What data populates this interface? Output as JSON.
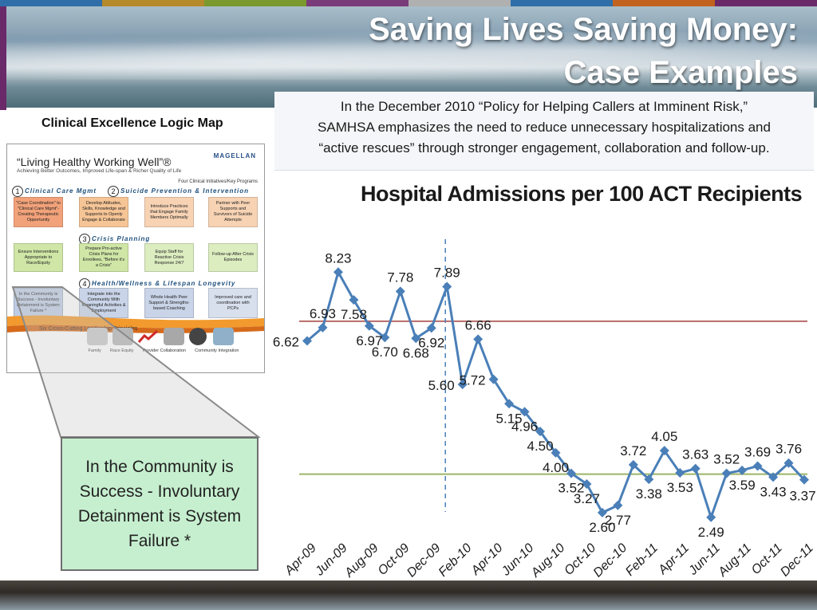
{
  "header": {
    "title_line1": "Saving Lives Saving Money:",
    "title_line2": "Case Examples",
    "colors": [
      "#2f6ea8",
      "#b58a2a",
      "#7a9a2f",
      "#7a3b7a",
      "#b0b0b0",
      "#2f6ea8",
      "#c1631f",
      "#6a2a6a"
    ]
  },
  "policy": {
    "line1": "In the December 2010 “Policy for Helping Callers at Imminent Risk,”",
    "line2": "SAMHSA emphasizes the need to reduce unnecessary hospitalizations and",
    "line3": "“active rescues” through stronger engagement, collaboration and follow-up."
  },
  "logic_map": {
    "title": "Clinical Excellence Logic Map",
    "heading": "“Living Healthy Working Well”®",
    "subheading": "Achieving Better Outcomes, Improved Life-span & Richer Quality of Life",
    "logo": "MAGELLAN",
    "four_label": "Four Clinical Initiatives/Key Programs",
    "sections": [
      {
        "num": "1",
        "label": "Clinical Care Mgmt"
      },
      {
        "num": "2",
        "label": "Suicide Prevention & Intervention"
      },
      {
        "num": "3",
        "label": "Crisis Planning"
      },
      {
        "num": "4",
        "label": "Health/Wellness & Lifespan Longevity"
      }
    ],
    "boxes": [
      "\"Case Coordination\" to \"Clinical Care Mgmt\"- Creating Therapeutic Opportunity",
      "Develop Attitudes, Skills, Knowledge and Supports to Openly Engage & Collaborate",
      "Introduce Practices that Engage Family Members Optimally",
      "Partner with Peer Supports and Survivors of Suicide Attempts",
      "Ensure Interventions Appropriate to Race/Equity",
      "Prepare Pro-active Crisis Plans for Enrollees, \"Before it's a Crisis\"",
      "Equip Staff for Reactive Crisis Response 24/7",
      "Follow-up After Crisis Episodes",
      "In the Community is Success - Involuntary Detainment is System Failure *",
      "Integrate into the Community With Meaningful Activities & Employment",
      "Whole Health Peer Support & Strengths-based Coaching",
      "Improved care and coordination with PCPs"
    ],
    "six_label": "Six Cross-Cutting Leadership Principles",
    "principles": [
      "Family",
      "Race Equity",
      "Provider Collaboration",
      "Community Integration"
    ]
  },
  "callout": {
    "line1": "In the Community is",
    "line2": "Success - Involuntary",
    "line3": "Detainment is System",
    "line4": "Failure *"
  },
  "chart_data": {
    "type": "line",
    "title": "Hospital Admissions per 100 ACT Recipients",
    "x": [
      "Apr-09",
      "May-09",
      "Jun-09",
      "Jul-09",
      "Aug-09",
      "Sep-09",
      "Oct-09",
      "Nov-09",
      "Dec-09",
      "Jan-10",
      "Feb-10",
      "Mar-10",
      "Apr-10",
      "May-10",
      "Jun-10",
      "Jul-10",
      "Aug-10",
      "Sep-10",
      "Oct-10",
      "Nov-10",
      "Dec-10",
      "Jan-11",
      "Feb-11",
      "Mar-11",
      "Apr-11",
      "May-11",
      "Jun-11",
      "Jul-11",
      "Aug-11",
      "Sep-11",
      "Oct-11",
      "Nov-11",
      "Dec-11"
    ],
    "y": [
      6.62,
      6.93,
      8.23,
      7.58,
      6.97,
      6.7,
      7.78,
      6.68,
      6.92,
      7.89,
      5.6,
      6.66,
      5.72,
      5.15,
      4.96,
      4.5,
      4.0,
      3.52,
      3.27,
      2.6,
      2.77,
      3.72,
      3.38,
      4.05,
      3.53,
      3.63,
      2.49,
      3.52,
      3.59,
      3.69,
      3.43,
      3.76,
      3.37
    ],
    "labels": [
      "6.62",
      "6.93",
      "8.23",
      "7.58",
      "6.97",
      "6.70",
      "7.78",
      "6.68",
      "6.92",
      "7.89",
      "5.60",
      "6.66",
      "5.72",
      "5.15",
      "4.96",
      "4.50",
      "4.00",
      "3.52",
      "3.27",
      "2.60",
      "2.77",
      "3.72",
      "3.38",
      "4.05",
      "3.53",
      "3.63",
      "2.49",
      "3.52",
      "3.59",
      "3.69",
      "3.43",
      "3.76",
      "3.37"
    ],
    "tick_labels": [
      "Apr-09",
      "Jun-09",
      "Aug-09",
      "Oct-09",
      "Dec-09",
      "Feb-10",
      "Apr-10",
      "Jun-10",
      "Aug-10",
      "Oct-10",
      "Dec-10",
      "Feb-11",
      "Apr-11",
      "Jun-11",
      "Aug-11",
      "Oct-11",
      "Dec-11"
    ],
    "ylim": [
      2.0,
      9.0
    ],
    "reference_lines": [
      {
        "value": 7.08,
        "color": "#b76c6a"
      },
      {
        "value": 3.5,
        "color": "#9cb566"
      }
    ],
    "divider_after": "Jan-10",
    "line_color": "#4a7fb8",
    "grid": false
  }
}
